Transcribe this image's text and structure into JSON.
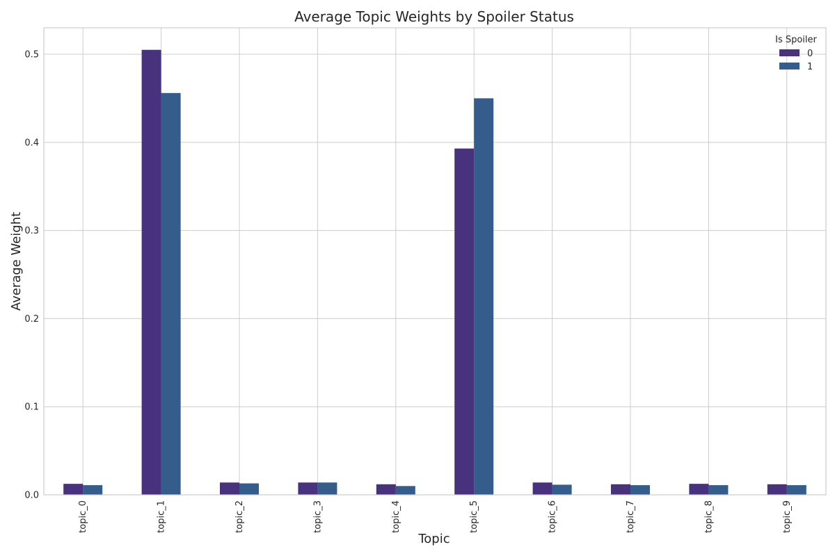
{
  "chart_data": {
    "type": "bar",
    "title": "Average Topic Weights by Spoiler Status",
    "xlabel": "Topic",
    "ylabel": "Average Weight",
    "categories": [
      "topic_0",
      "topic_1",
      "topic_2",
      "topic_3",
      "topic_4",
      "topic_5",
      "topic_6",
      "topic_7",
      "topic_8",
      "topic_9"
    ],
    "series": [
      {
        "name": "0",
        "color": "#48327d",
        "values": [
          0.0125,
          0.505,
          0.014,
          0.014,
          0.012,
          0.393,
          0.014,
          0.012,
          0.0125,
          0.012
        ]
      },
      {
        "name": "1",
        "color": "#355d8c",
        "values": [
          0.011,
          0.456,
          0.013,
          0.014,
          0.01,
          0.45,
          0.0115,
          0.011,
          0.011,
          0.011
        ]
      }
    ],
    "ylim": [
      0,
      0.53
    ],
    "yticks": [
      "0.0",
      "0.1",
      "0.2",
      "0.3",
      "0.4",
      "0.5"
    ],
    "grid": true,
    "legend": {
      "title": "Is Spoiler",
      "position": "top-right"
    }
  }
}
